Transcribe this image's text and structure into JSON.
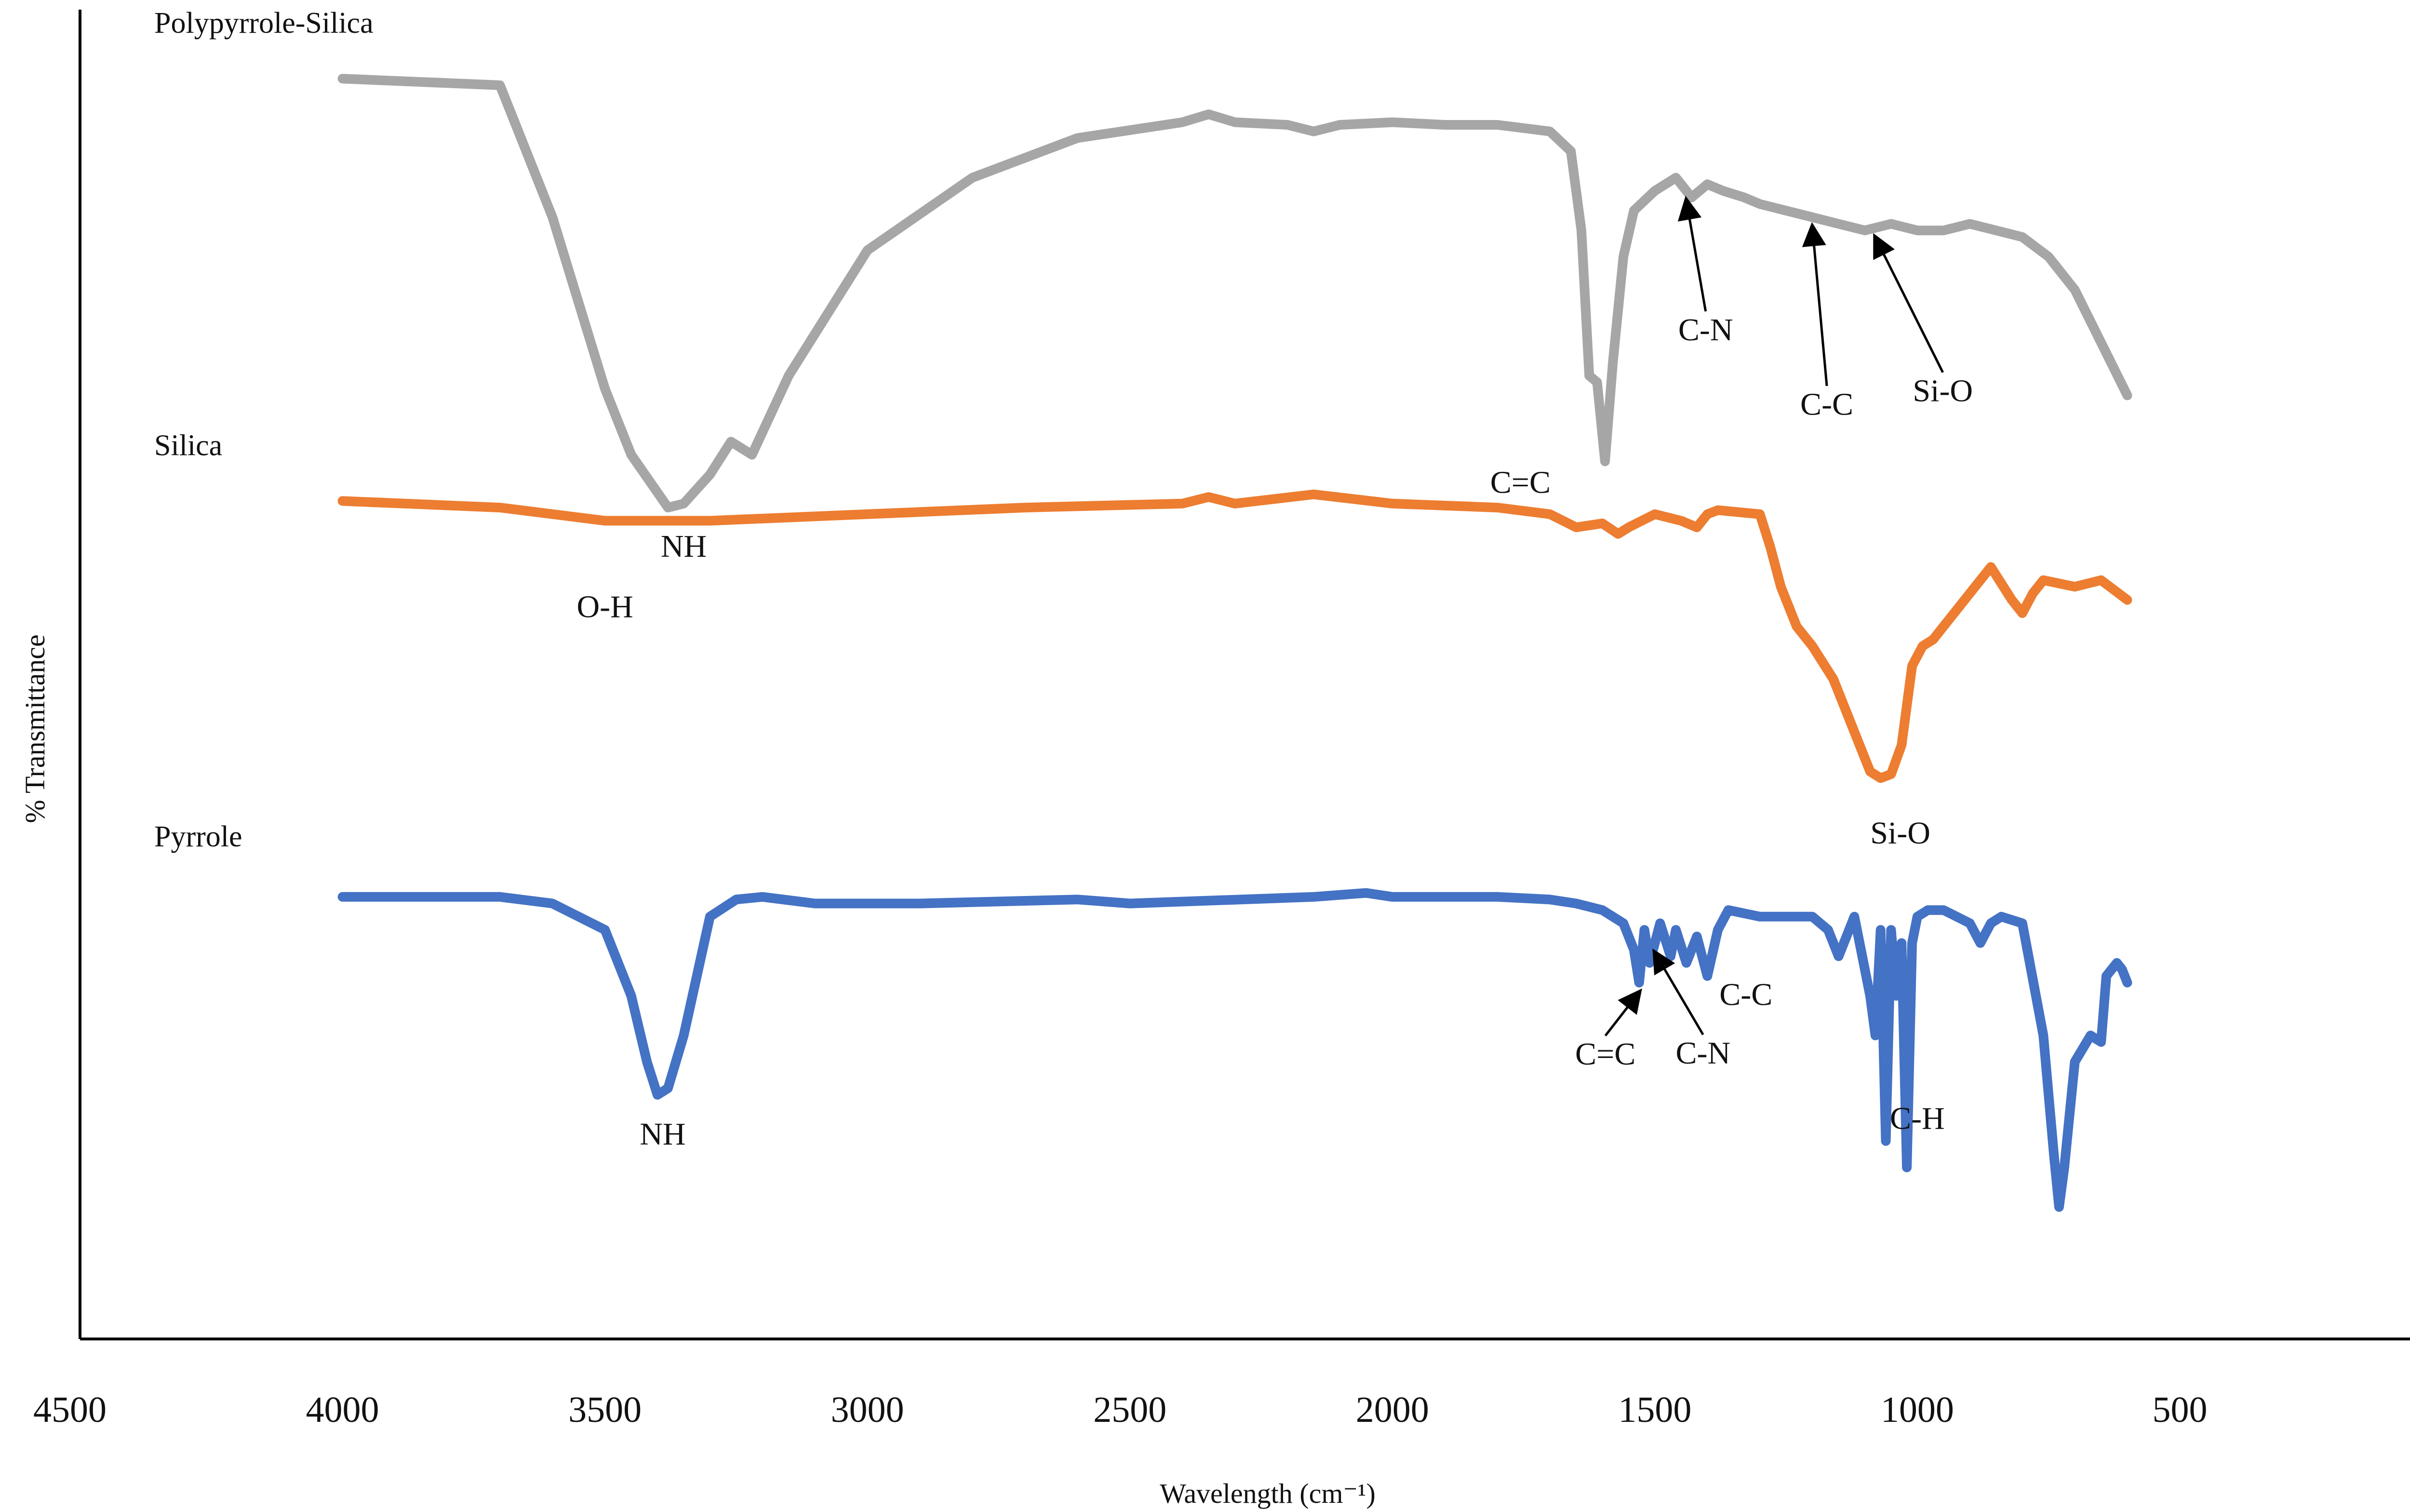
{
  "chart_data": {
    "type": "line",
    "xlabel": "Wavelength (cm⁻¹)",
    "ylabel": "% Transmittance",
    "xlim": [
      4500,
      0
    ],
    "x_reversed": true,
    "xticks": [
      4500,
      4000,
      3500,
      3000,
      2500,
      2000,
      1500,
      1000,
      500,
      0
    ],
    "y_ticks_shown": false,
    "grid": false,
    "legend": "none; series names written beside each curve",
    "series": [
      {
        "name": "Polypyrrole-Silica",
        "color": "#a6a6a6",
        "x": [
          4000,
          3700,
          3600,
          3500,
          3450,
          3380,
          3350,
          3300,
          3260,
          3220,
          3150,
          3000,
          2800,
          2600,
          2400,
          2350,
          2300,
          2200,
          2150,
          2100,
          2000,
          1900,
          1800,
          1700,
          1660,
          1640,
          1625,
          1610,
          1595,
          1580,
          1560,
          1540,
          1500,
          1460,
          1430,
          1400,
          1370,
          1330,
          1300,
          1250,
          1200,
          1150,
          1100,
          1050,
          1000,
          950,
          900,
          850,
          800,
          750,
          700,
          650,
          600
        ],
        "y": [
          95.5,
          95.0,
          85.0,
          72.0,
          67.0,
          63.0,
          63.3,
          65.5,
          68.0,
          67.0,
          73.0,
          82.5,
          88.0,
          91.0,
          92.2,
          92.8,
          92.2,
          92.0,
          91.5,
          92.0,
          92.2,
          92.0,
          92.0,
          91.5,
          90.0,
          84.0,
          73.0,
          72.5,
          66.5,
          74.0,
          82.0,
          85.5,
          87.0,
          88.0,
          86.5,
          87.5,
          87.0,
          86.5,
          86.0,
          85.5,
          85.0,
          84.5,
          84.0,
          84.5,
          84.0,
          84.0,
          84.5,
          84.0,
          83.5,
          82.0,
          79.5,
          75.5,
          71.5
        ]
      },
      {
        "name": "Silica",
        "color": "#ed7d31",
        "x": [
          4000,
          3700,
          3500,
          3300,
          3000,
          2700,
          2400,
          2350,
          2300,
          2150,
          2000,
          1800,
          1700,
          1650,
          1600,
          1570,
          1550,
          1500,
          1450,
          1420,
          1400,
          1380,
          1300,
          1280,
          1260,
          1230,
          1200,
          1160,
          1120,
          1090,
          1070,
          1050,
          1030,
          1010,
          990,
          970,
          950,
          900,
          860,
          820,
          800,
          780,
          760,
          700,
          650,
          600
        ],
        "y": [
          63.5,
          63.0,
          62.0,
          62.0,
          62.5,
          63.0,
          63.3,
          63.8,
          63.3,
          64.0,
          63.3,
          63.0,
          62.5,
          61.5,
          61.8,
          61.0,
          61.5,
          62.5,
          62.0,
          61.5,
          62.5,
          62.8,
          62.5,
          60.0,
          57.0,
          54.0,
          52.5,
          50.0,
          46.0,
          43.0,
          42.5,
          42.8,
          45.0,
          51.0,
          52.5,
          53.0,
          54.0,
          56.5,
          58.5,
          56.0,
          55.0,
          56.5,
          57.5,
          57.0,
          57.5,
          56.0
        ]
      },
      {
        "name": "Pyrrole",
        "color": "#4472c4",
        "x": [
          4000,
          3700,
          3600,
          3500,
          3450,
          3420,
          3400,
          3380,
          3350,
          3300,
          3250,
          3200,
          3100,
          3000,
          2900,
          2600,
          2500,
          2150,
          2050,
          2000,
          1800,
          1700,
          1650,
          1600,
          1560,
          1540,
          1530,
          1520,
          1510,
          1490,
          1470,
          1460,
          1440,
          1420,
          1400,
          1380,
          1360,
          1300,
          1200,
          1170,
          1150,
          1120,
          1090,
          1080,
          1070,
          1060,
          1050,
          1040,
          1030,
          1020,
          1010,
          1000,
          980,
          950,
          900,
          880,
          860,
          840,
          800,
          760,
          740,
          730,
          720,
          700,
          670,
          650,
          640,
          620,
          610,
          600
        ],
        "y": [
          33.5,
          33.5,
          33.0,
          31.0,
          26.0,
          21.0,
          18.5,
          19.0,
          23.0,
          32.0,
          33.3,
          33.5,
          33.0,
          33.0,
          33.0,
          33.3,
          33.0,
          33.5,
          33.8,
          33.5,
          33.5,
          33.3,
          33.0,
          32.5,
          31.5,
          29.5,
          27.0,
          31.0,
          28.5,
          31.5,
          29.0,
          31.0,
          28.5,
          30.5,
          27.5,
          31.0,
          32.5,
          32.0,
          32.0,
          31.0,
          29.0,
          32.0,
          26.0,
          23.0,
          31.0,
          15.0,
          31.0,
          26.0,
          30.0,
          13.0,
          30.0,
          32.0,
          32.5,
          32.5,
          31.5,
          30.0,
          31.5,
          32.0,
          31.5,
          23.0,
          14.0,
          10.0,
          13.0,
          21.0,
          23.0,
          22.5,
          27.5,
          28.5,
          28.0,
          27.0
        ]
      }
    ],
    "annotations": [
      {
        "text": "NH",
        "series": "Polypyrrole-Silica",
        "x": 3350
      },
      {
        "text": "C=C",
        "series": "Polypyrrole-Silica",
        "x": 1600
      },
      {
        "text": "C-N",
        "series": "Polypyrrole-Silica",
        "x": 1440
      },
      {
        "text": "C-C",
        "series": "Polypyrrole-Silica",
        "x": 1200
      },
      {
        "text": "Si-O",
        "series": "Polypyrrole-Silica",
        "x": 1080
      },
      {
        "text": "O-H",
        "series": "Silica",
        "x": 3500
      },
      {
        "text": "Si-O",
        "series": "Silica",
        "x": 1060
      },
      {
        "text": "NH",
        "series": "Pyrrole",
        "x": 3390
      },
      {
        "text": "C=C",
        "series": "Pyrrole",
        "x": 1530
      },
      {
        "text": "C-N",
        "series": "Pyrrole",
        "x": 1500
      },
      {
        "text": "C-C",
        "series": "Pyrrole",
        "x": 1400
      },
      {
        "text": "C-H",
        "series": "Pyrrole",
        "x": 1000
      }
    ]
  }
}
